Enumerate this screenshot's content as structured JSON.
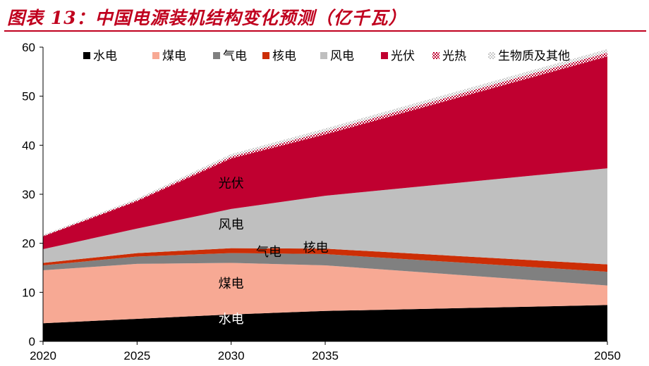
{
  "header": {
    "title": "图表 13：中国电源装机结构变化预测（亿千瓦）"
  },
  "chart_data": {
    "type": "area",
    "stacked": true,
    "title": "",
    "xlabel": "",
    "ylabel": "",
    "x": [
      2020,
      2025,
      2030,
      2035,
      2050
    ],
    "ylim": [
      0,
      60
    ],
    "yticks": [
      0,
      10,
      20,
      30,
      40,
      50,
      60
    ],
    "grid": false,
    "legend_position": "top",
    "series": [
      {
        "name": "水电",
        "color": "#000000",
        "values": [
          3.7,
          4.6,
          5.5,
          6.2,
          7.4
        ]
      },
      {
        "name": "煤电",
        "color": "#f7a994",
        "values": [
          10.8,
          11.2,
          10.5,
          9.3,
          4.0
        ]
      },
      {
        "name": "气电",
        "color": "#808080",
        "values": [
          1.0,
          1.5,
          2.0,
          2.3,
          2.8
        ]
      },
      {
        "name": "核电",
        "color": "#cc2e06",
        "values": [
          0.5,
          0.7,
          1.0,
          1.1,
          1.5
        ]
      },
      {
        "name": "风电",
        "color": "#bfbfbf",
        "values": [
          2.8,
          5.0,
          8.0,
          10.8,
          19.6
        ]
      },
      {
        "name": "光伏",
        "color": "#c00030",
        "values": [
          2.6,
          5.6,
          10.3,
          12.5,
          22.8
        ]
      },
      {
        "name": "光热",
        "color": "#e8c0cc",
        "values": [
          0.1,
          0.2,
          0.4,
          0.6,
          0.8
        ]
      },
      {
        "name": "生物质及其他",
        "color": "#e2e2e2",
        "values": [
          0.2,
          0.3,
          0.5,
          0.6,
          0.7
        ]
      }
    ],
    "annotations": [
      {
        "text": "水电",
        "x": 2030,
        "y": 4.5,
        "color": "#ffffff"
      },
      {
        "text": "煤电",
        "x": 2030,
        "y": 11.8,
        "color": "#000000"
      },
      {
        "text": "气电",
        "x": 2032,
        "y": 18.2,
        "color": "#000000"
      },
      {
        "text": "核电",
        "x": 2034.5,
        "y": 19.1,
        "color": "#000000"
      },
      {
        "text": "风电",
        "x": 2030,
        "y": 23.8,
        "color": "#000000"
      },
      {
        "text": "光伏",
        "x": 2030,
        "y": 32.2,
        "color": "#000000"
      }
    ]
  }
}
